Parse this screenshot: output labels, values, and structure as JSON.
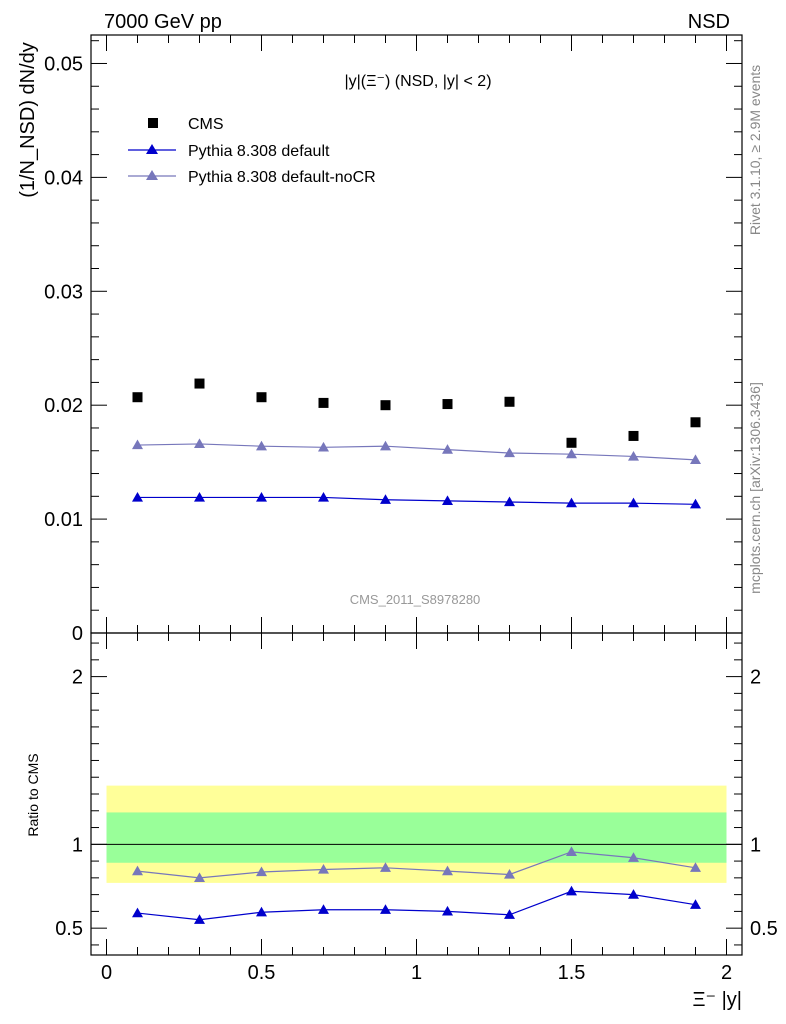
{
  "header": {
    "left": "7000 GeV pp",
    "right": "NSD"
  },
  "side_labels": {
    "rivet": "Rivet 3.1.10, ≥ 2.9M events",
    "mcplots": "mcplots.cern.ch [arXiv:1306.3436]"
  },
  "plot_title": "|y|(Ξ⁻) (NSD, |y| < 2)",
  "analysis_tag": "CMS_2011_S8978280",
  "legend": [
    "CMS",
    "Pythia 8.308 default",
    "Pythia 8.308 default-noCR"
  ],
  "colors": {
    "cms": "#000000",
    "default": "#0000cc",
    "nocr": "#7777bb",
    "band_inner": "#99ff99",
    "band_outer": "#ffff99"
  },
  "axis_labels": {
    "main_ylabel": "(1/N_NSD) dN/dy",
    "ratio_ylabel": "Ratio to CMS",
    "xlabel": "Ξ⁻ |y|"
  },
  "chart_data": [
    {
      "type": "scatter",
      "panel": "main",
      "x": [
        0.1,
        0.3,
        0.5,
        0.7,
        0.9,
        1.1,
        1.3,
        1.5,
        1.7,
        1.9
      ],
      "xlim": [
        -0.05,
        2.05
      ],
      "ylim": [
        0,
        0.0525
      ],
      "yticks": [
        "0",
        "0.01",
        "0.02",
        "0.03",
        "0.04",
        "0.05"
      ],
      "ytick_values": [
        0,
        0.01,
        0.02,
        0.03,
        0.04,
        0.05
      ],
      "series": [
        {
          "name": "CMS",
          "marker": "square",
          "values": [
            0.0207,
            0.0219,
            0.0207,
            0.0202,
            0.02,
            0.0201,
            0.0203,
            0.0167,
            0.0173,
            0.0185
          ]
        },
        {
          "name": "Pythia 8.308 default",
          "marker": "triangle",
          "values": [
            0.0119,
            0.0119,
            0.0119,
            0.0119,
            0.0117,
            0.0116,
            0.0115,
            0.0114,
            0.0114,
            0.0113
          ]
        },
        {
          "name": "Pythia 8.308 default-noCR",
          "marker": "triangle",
          "values": [
            0.0165,
            0.0166,
            0.0164,
            0.0163,
            0.0164,
            0.0161,
            0.0158,
            0.0157,
            0.0155,
            0.0152
          ]
        }
      ]
    },
    {
      "type": "line",
      "panel": "ratio",
      "x": [
        0.1,
        0.3,
        0.5,
        0.7,
        0.9,
        1.1,
        1.3,
        1.5,
        1.7,
        1.9
      ],
      "xlim": [
        -0.05,
        2.05
      ],
      "ylim": [
        0.34,
        2.26
      ],
      "yticks": [
        "0.5",
        "1",
        "2"
      ],
      "ytick_values": [
        0.5,
        1,
        2
      ],
      "xticks": [
        "0",
        "0.5",
        "1",
        "1.5",
        "2"
      ],
      "xtick_values": [
        0,
        0.5,
        1,
        1.5,
        2
      ],
      "bands": {
        "outer": {
          "x_range": [
            0,
            2
          ],
          "lo": 0.77,
          "hi": 1.35
        },
        "inner": {
          "x_range": [
            0,
            2
          ],
          "lo": 0.89,
          "hi": 1.19
        }
      },
      "series": [
        {
          "name": "Pythia 8.308 default",
          "values": [
            0.59,
            0.55,
            0.595,
            0.61,
            0.61,
            0.6,
            0.58,
            0.72,
            0.7,
            0.64
          ]
        },
        {
          "name": "Pythia 8.308 default-noCR",
          "values": [
            0.84,
            0.8,
            0.835,
            0.85,
            0.86,
            0.84,
            0.82,
            0.955,
            0.92,
            0.86
          ]
        }
      ]
    }
  ]
}
